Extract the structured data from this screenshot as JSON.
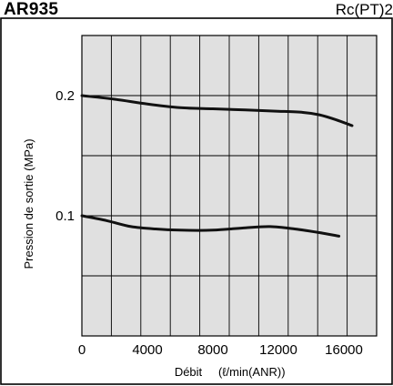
{
  "header": {
    "model": "AR935",
    "port": "Rc(PT)2"
  },
  "chart_data": {
    "type": "line",
    "title": "AR935",
    "subtitle": "Rc(PT)2",
    "xlabel": "Débit",
    "xunit": "(ℓ/min(ANR))",
    "ylabel": "Pression de sortie (MPa)",
    "xlim": [
      0,
      18000
    ],
    "ylim": [
      0,
      0.25
    ],
    "x_ticks": [
      0,
      4000,
      8000,
      12000,
      16000
    ],
    "x_tick_labels": [
      "0",
      "4000",
      "8000",
      "12000",
      "16000"
    ],
    "y_ticks": [
      0.1,
      0.2
    ],
    "y_tick_labels": [
      "0.1",
      "0.2"
    ],
    "grid": true,
    "x_grid_step": 1800,
    "y_grid_step": 0.05,
    "series": [
      {
        "x": [
          0,
          2000,
          4000,
          6000,
          8000,
          10000,
          12000,
          13500,
          14500,
          15500,
          16500
        ],
        "y": [
          0.2,
          0.197,
          0.193,
          0.19,
          0.189,
          0.188,
          0.187,
          0.186,
          0.184,
          0.18,
          0.175
        ],
        "color": "#111111"
      },
      {
        "x": [
          0,
          1500,
          3000,
          4500,
          6000,
          8000,
          10000,
          11500,
          13000,
          14500,
          15700
        ],
        "y": [
          0.1,
          0.096,
          0.091,
          0.089,
          0.088,
          0.088,
          0.09,
          0.091,
          0.089,
          0.086,
          0.083
        ],
        "color": "#111111"
      }
    ]
  }
}
